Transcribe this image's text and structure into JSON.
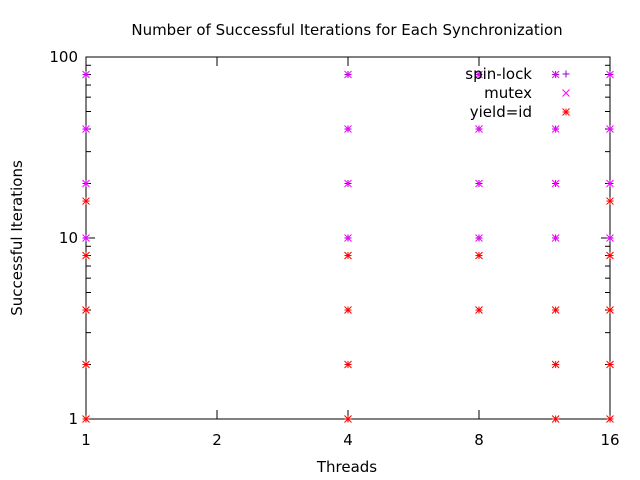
{
  "chart_data": {
    "type": "scatter",
    "title": "Number of Successful Iterations for Each Synchronization",
    "xlabel": "Threads",
    "ylabel": "Successful Iterations",
    "xscale": "log2",
    "yscale": "log10",
    "xlim": [
      1,
      16
    ],
    "ylim": [
      1,
      100
    ],
    "xticks": [
      1,
      2,
      4,
      8,
      16
    ],
    "xtick_labels": [
      "1",
      "2",
      "4",
      "8",
      "16"
    ],
    "yticks": [
      1,
      10,
      100
    ],
    "ytick_labels": [
      "1",
      "10",
      "100"
    ],
    "grid": false,
    "legend_position": "top-right",
    "series": [
      {
        "name": "spin-lock",
        "color": "#9400d3",
        "marker": "plus",
        "points": [
          [
            1,
            10
          ],
          [
            1,
            20
          ],
          [
            1,
            40
          ],
          [
            1,
            80
          ],
          [
            4,
            10
          ],
          [
            4,
            20
          ],
          [
            4,
            40
          ],
          [
            4,
            80
          ],
          [
            8,
            10
          ],
          [
            8,
            20
          ],
          [
            8,
            40
          ],
          [
            8,
            80
          ],
          [
            12,
            10
          ],
          [
            12,
            20
          ],
          [
            12,
            40
          ],
          [
            12,
            80
          ],
          [
            16,
            10
          ],
          [
            16,
            20
          ],
          [
            16,
            40
          ],
          [
            16,
            80
          ]
        ]
      },
      {
        "name": "mutex",
        "color": "#ff00ff",
        "marker": "cross",
        "points": [
          [
            1,
            10
          ],
          [
            1,
            20
          ],
          [
            1,
            40
          ],
          [
            1,
            80
          ],
          [
            4,
            10
          ],
          [
            4,
            20
          ],
          [
            4,
            40
          ],
          [
            4,
            80
          ],
          [
            8,
            10
          ],
          [
            8,
            20
          ],
          [
            8,
            40
          ],
          [
            8,
            80
          ],
          [
            12,
            10
          ],
          [
            12,
            20
          ],
          [
            12,
            40
          ],
          [
            12,
            80
          ],
          [
            16,
            10
          ],
          [
            16,
            20
          ],
          [
            16,
            40
          ],
          [
            16,
            80
          ]
        ]
      },
      {
        "name": "yield=id",
        "color": "#ff0000",
        "marker": "star",
        "points": [
          [
            1,
            1
          ],
          [
            1,
            2
          ],
          [
            1,
            4
          ],
          [
            1,
            8
          ],
          [
            1,
            16
          ],
          [
            4,
            1
          ],
          [
            4,
            2
          ],
          [
            4,
            4
          ],
          [
            4,
            8
          ],
          [
            8,
            4
          ],
          [
            8,
            8
          ],
          [
            12,
            1
          ],
          [
            12,
            2
          ],
          [
            12,
            4
          ],
          [
            16,
            1
          ],
          [
            16,
            2
          ],
          [
            16,
            4
          ],
          [
            16,
            8
          ],
          [
            16,
            16
          ]
        ]
      }
    ]
  }
}
